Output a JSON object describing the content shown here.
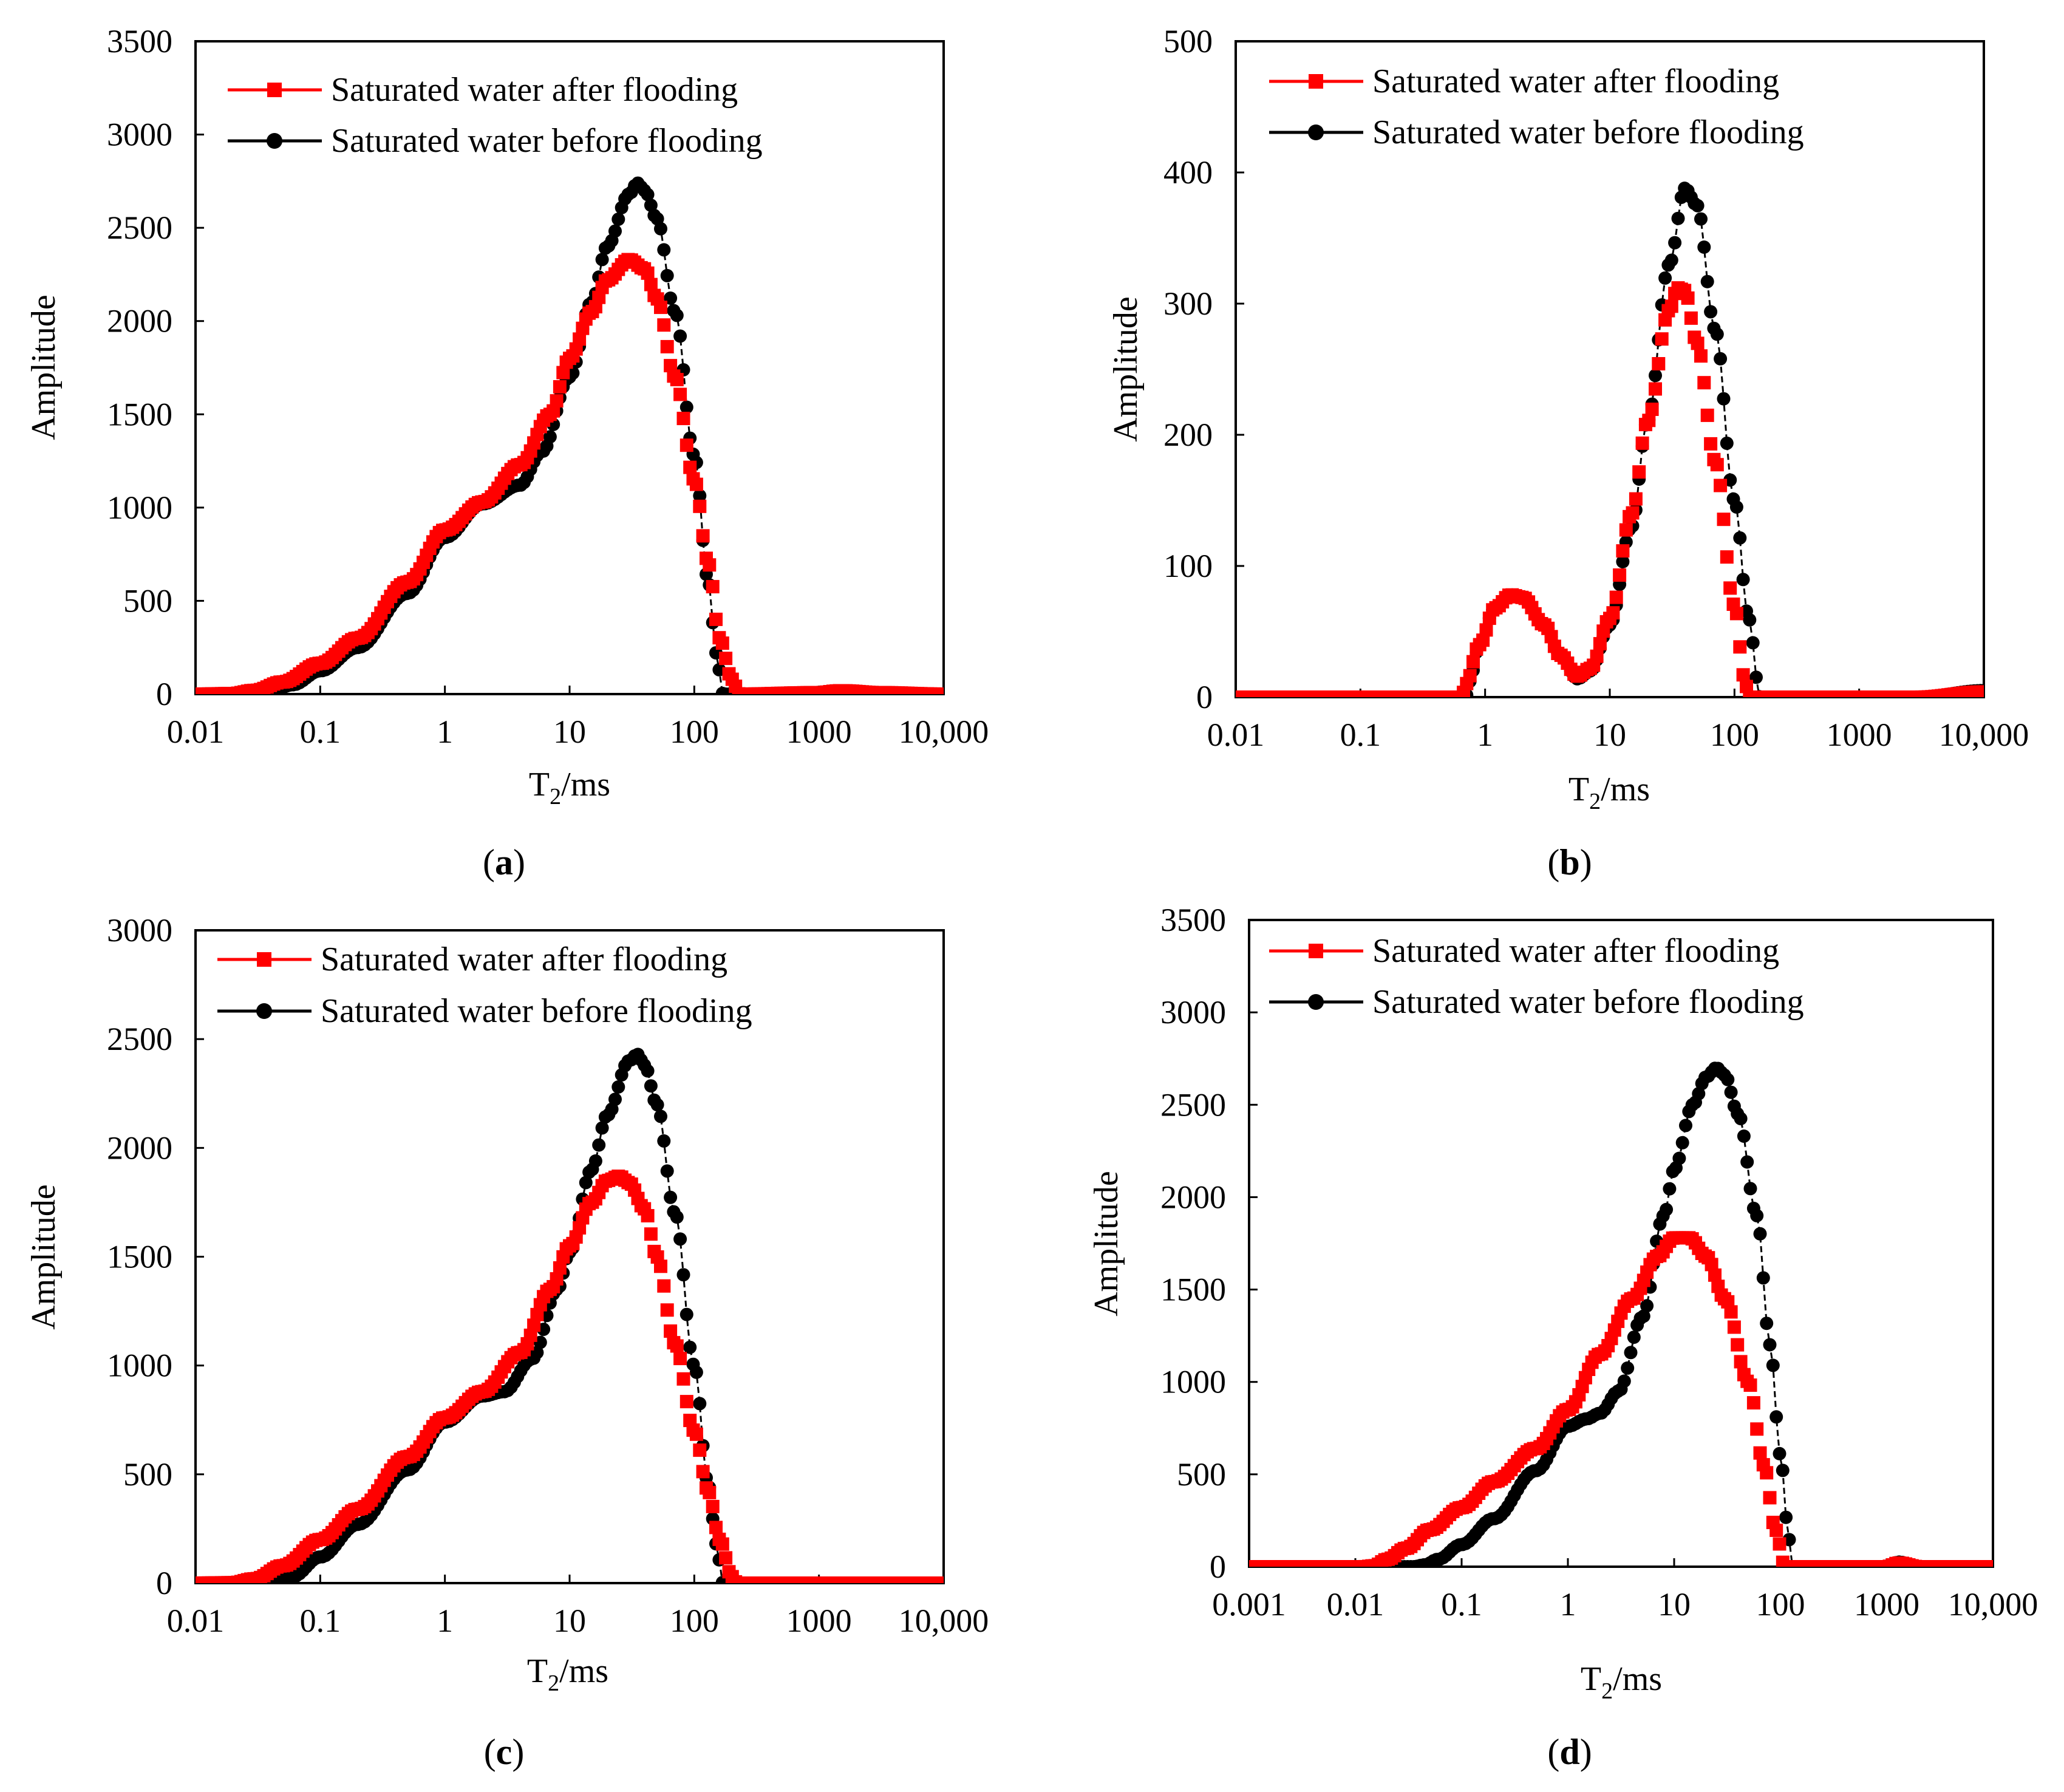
{
  "figure": {
    "panel_labels": [
      "a",
      "b",
      "c",
      "d"
    ]
  },
  "legend_labels": {
    "after": "Saturated water after flooding",
    "before": "Saturated water before flooding"
  },
  "colors": {
    "after": "#ff0000",
    "before": "#000000",
    "dash": "#000000"
  },
  "chart_data": [
    {
      "id": "a",
      "type": "scatter",
      "xscale": "log",
      "xlabel_main": "T",
      "xlabel_sub": "2",
      "xlabel_unit": "/ms",
      "ylabel": "Amplitude",
      "xlim": [
        0.01,
        10000
      ],
      "ylim": [
        0,
        3500
      ],
      "x_ticks": [
        0.01,
        0.1,
        1,
        10,
        100,
        1000,
        10000
      ],
      "x_tick_labels": [
        "0.01",
        "0.1",
        "1",
        "10",
        "100",
        "1000",
        "10,000"
      ],
      "y_ticks": [
        0,
        500,
        1000,
        1500,
        2000,
        2500,
        3000,
        3500
      ],
      "y_tick_labels": [
        "0",
        "500",
        "1000",
        "1500",
        "2000",
        "2500",
        "3000",
        "3500"
      ],
      "legend_position": "top-left",
      "series": [
        {
          "name": "Saturated water after flooding",
          "key": "after",
          "points": [
            [
              0.01,
              0
            ],
            [
              0.02,
              3
            ],
            [
              0.03,
              20
            ],
            [
              0.05,
              65
            ],
            [
              0.1,
              165
            ],
            [
              0.2,
              300
            ],
            [
              0.5,
              600
            ],
            [
              1,
              880
            ],
            [
              2,
              1030
            ],
            [
              4,
              1230
            ],
            [
              7,
              1500
            ],
            [
              10,
              1800
            ],
            [
              15,
              2050
            ],
            [
              20,
              2220
            ],
            [
              30,
              2330
            ],
            [
              40,
              2280
            ],
            [
              50,
              2120
            ],
            [
              70,
              1700
            ],
            [
              100,
              1150
            ],
            [
              130,
              700
            ],
            [
              160,
              300
            ],
            [
              200,
              80
            ],
            [
              230,
              0
            ],
            [
              1000,
              8
            ],
            [
              1500,
              18
            ],
            [
              3000,
              8
            ],
            [
              10000,
              0
            ]
          ]
        },
        {
          "name": "Saturated water before flooding",
          "key": "before",
          "points": [
            [
              0.01,
              0
            ],
            [
              0.03,
              3
            ],
            [
              0.04,
              12
            ],
            [
              0.06,
              50
            ],
            [
              0.1,
              125
            ],
            [
              0.2,
              250
            ],
            [
              0.5,
              540
            ],
            [
              1,
              840
            ],
            [
              2,
              1020
            ],
            [
              4,
              1120
            ],
            [
              6,
              1300
            ],
            [
              10,
              1700
            ],
            [
              15,
              2100
            ],
            [
              20,
              2400
            ],
            [
              30,
              2680
            ],
            [
              35,
              2740
            ],
            [
              40,
              2700
            ],
            [
              50,
              2550
            ],
            [
              70,
              2050
            ],
            [
              100,
              1280
            ],
            [
              130,
              600
            ],
            [
              150,
              220
            ],
            [
              170,
              0
            ],
            [
              10000,
              0
            ]
          ]
        }
      ]
    },
    {
      "id": "b",
      "type": "scatter",
      "xscale": "log",
      "xlabel_main": "T",
      "xlabel_sub": "2",
      "xlabel_unit": "/ms",
      "ylabel": "Amplitude",
      "xlim": [
        0.01,
        10000
      ],
      "ylim": [
        0,
        500
      ],
      "x_ticks": [
        0.01,
        0.1,
        1,
        10,
        100,
        1000,
        10000
      ],
      "x_tick_labels": [
        "0.01",
        "0.1",
        "1",
        "10",
        "100",
        "1000",
        "10,000"
      ],
      "y_ticks": [
        0,
        100,
        200,
        300,
        400,
        500
      ],
      "y_tick_labels": [
        "0",
        "100",
        "200",
        "300",
        "400",
        "500"
      ],
      "legend_position": "top-left",
      "series": [
        {
          "name": "Saturated water after flooding",
          "key": "after",
          "points": [
            [
              0.01,
              0
            ],
            [
              0.65,
              0
            ],
            [
              0.7,
              10
            ],
            [
              0.9,
              40
            ],
            [
              1.2,
              68
            ],
            [
              1.6,
              78
            ],
            [
              2,
              76
            ],
            [
              3,
              55
            ],
            [
              4,
              32
            ],
            [
              5.5,
              16
            ],
            [
              7,
              22
            ],
            [
              10,
              60
            ],
            [
              15,
              140
            ],
            [
              20,
              210
            ],
            [
              30,
              295
            ],
            [
              35,
              312
            ],
            [
              40,
              310
            ],
            [
              50,
              270
            ],
            [
              70,
              180
            ],
            [
              100,
              70
            ],
            [
              120,
              15
            ],
            [
              130,
              0
            ],
            [
              3000,
              0
            ],
            [
              10000,
              4
            ]
          ]
        },
        {
          "name": "Saturated water before flooding",
          "key": "before",
          "points": [
            [
              0.01,
              0
            ],
            [
              0.7,
              0
            ],
            [
              0.75,
              12
            ],
            [
              0.9,
              40
            ],
            [
              1.2,
              68
            ],
            [
              1.6,
              78
            ],
            [
              2,
              76
            ],
            [
              3,
              55
            ],
            [
              4,
              32
            ],
            [
              5.5,
              14
            ],
            [
              7,
              20
            ],
            [
              10,
              55
            ],
            [
              15,
              130
            ],
            [
              20,
              210
            ],
            [
              30,
              330
            ],
            [
              40,
              388
            ],
            [
              50,
              375
            ],
            [
              70,
              280
            ],
            [
              100,
              150
            ],
            [
              130,
              60
            ],
            [
              160,
              0
            ],
            [
              3000,
              0
            ],
            [
              10000,
              5
            ]
          ]
        }
      ]
    },
    {
      "id": "c",
      "type": "scatter",
      "xscale": "log",
      "xlabel_main": "T",
      "xlabel_sub": "2",
      "xlabel_unit": "/ms",
      "ylabel": "Amplitude",
      "xlim": [
        0.01,
        10000
      ],
      "ylim": [
        0,
        3000
      ],
      "x_ticks": [
        0.01,
        0.1,
        1,
        10,
        100,
        1000,
        10000
      ],
      "x_tick_labels": [
        "0.01",
        "0.1",
        "1",
        "10",
        "100",
        "1000",
        "10,000"
      ],
      "y_ticks": [
        0,
        500,
        1000,
        1500,
        2000,
        2500,
        3000
      ],
      "y_tick_labels": [
        "0",
        "500",
        "1000",
        "1500",
        "2000",
        "2500",
        "3000"
      ],
      "legend_position": "top-left",
      "series": [
        {
          "name": "Saturated water after flooding",
          "key": "after",
          "points": [
            [
              0.01,
              0
            ],
            [
              0.02,
              2
            ],
            [
              0.03,
              20
            ],
            [
              0.05,
              80
            ],
            [
              0.1,
              200
            ],
            [
              0.2,
              340
            ],
            [
              0.5,
              580
            ],
            [
              1,
              760
            ],
            [
              2,
              880
            ],
            [
              4,
              1060
            ],
            [
              7,
              1350
            ],
            [
              10,
              1550
            ],
            [
              15,
              1750
            ],
            [
              20,
              1850
            ],
            [
              25,
              1870
            ],
            [
              30,
              1840
            ],
            [
              40,
              1720
            ],
            [
              50,
              1500
            ],
            [
              70,
              1100
            ],
            [
              100,
              700
            ],
            [
              130,
              420
            ],
            [
              160,
              200
            ],
            [
              200,
              30
            ],
            [
              220,
              0
            ],
            [
              10000,
              0
            ]
          ]
        },
        {
          "name": "Saturated water before flooding",
          "key": "before",
          "points": [
            [
              0.01,
              0
            ],
            [
              0.04,
              2
            ],
            [
              0.06,
              30
            ],
            [
              0.1,
              120
            ],
            [
              0.2,
              270
            ],
            [
              0.5,
              520
            ],
            [
              1,
              740
            ],
            [
              2,
              860
            ],
            [
              3,
              880
            ],
            [
              5,
              1030
            ],
            [
              8,
              1350
            ],
            [
              10,
              1520
            ],
            [
              15,
              1900
            ],
            [
              20,
              2150
            ],
            [
              30,
              2400
            ],
            [
              35,
              2430
            ],
            [
              40,
              2380
            ],
            [
              50,
              2200
            ],
            [
              70,
              1700
            ],
            [
              100,
              1000
            ],
            [
              130,
              450
            ],
            [
              150,
              180
            ],
            [
              170,
              0
            ],
            [
              10000,
              0
            ]
          ]
        }
      ]
    },
    {
      "id": "d",
      "type": "scatter",
      "xscale": "log",
      "xlabel_main": "T",
      "xlabel_sub": "2",
      "xlabel_unit": "/ms",
      "ylabel": "Amplitude",
      "xlim": [
        0.001,
        10000
      ],
      "ylim": [
        0,
        3500
      ],
      "x_ticks": [
        0.001,
        0.01,
        0.1,
        1,
        10,
        100,
        1000,
        10000
      ],
      "x_tick_labels": [
        "0.001",
        "0.01",
        "0.1",
        "1",
        "10",
        "100",
        "1000",
        "10,000"
      ],
      "y_ticks": [
        0,
        500,
        1000,
        1500,
        2000,
        2500,
        3000,
        3500
      ],
      "y_tick_labels": [
        "0",
        "500",
        "1000",
        "1500",
        "2000",
        "2500",
        "3000",
        "3500"
      ],
      "legend_position": "top-left",
      "series": [
        {
          "name": "Saturated water after flooding",
          "key": "after",
          "points": [
            [
              0.001,
              0
            ],
            [
              0.012,
              0
            ],
            [
              0.015,
              5
            ],
            [
              0.02,
              40
            ],
            [
              0.03,
              100
            ],
            [
              0.05,
              200
            ],
            [
              0.1,
              320
            ],
            [
              0.2,
              460
            ],
            [
              0.5,
              640
            ],
            [
              1,
              850
            ],
            [
              2,
              1150
            ],
            [
              4,
              1450
            ],
            [
              7,
              1680
            ],
            [
              10,
              1780
            ],
            [
              14,
              1780
            ],
            [
              20,
              1680
            ],
            [
              30,
              1450
            ],
            [
              50,
              1000
            ],
            [
              70,
              550
            ],
            [
              90,
              200
            ],
            [
              110,
              0
            ],
            [
              1000,
              0
            ],
            [
              1300,
              20
            ],
            [
              2000,
              0
            ],
            [
              10000,
              0
            ]
          ]
        },
        {
          "name": "Saturated water before flooding",
          "key": "before",
          "points": [
            [
              0.001,
              0
            ],
            [
              0.035,
              0
            ],
            [
              0.045,
              10
            ],
            [
              0.06,
              40
            ],
            [
              0.1,
              120
            ],
            [
              0.2,
              260
            ],
            [
              0.5,
              520
            ],
            [
              1,
              760
            ],
            [
              1.5,
              800
            ],
            [
              2,
              830
            ],
            [
              3,
              950
            ],
            [
              5,
              1350
            ],
            [
              8,
              1900
            ],
            [
              10,
              2150
            ],
            [
              15,
              2500
            ],
            [
              20,
              2650
            ],
            [
              25,
              2700
            ],
            [
              30,
              2660
            ],
            [
              40,
              2450
            ],
            [
              60,
              1900
            ],
            [
              80,
              1200
            ],
            [
              100,
              600
            ],
            [
              120,
              150
            ],
            [
              130,
              0
            ],
            [
              1000,
              0
            ],
            [
              1300,
              25
            ],
            [
              2000,
              0
            ],
            [
              10000,
              0
            ]
          ]
        }
      ]
    }
  ]
}
